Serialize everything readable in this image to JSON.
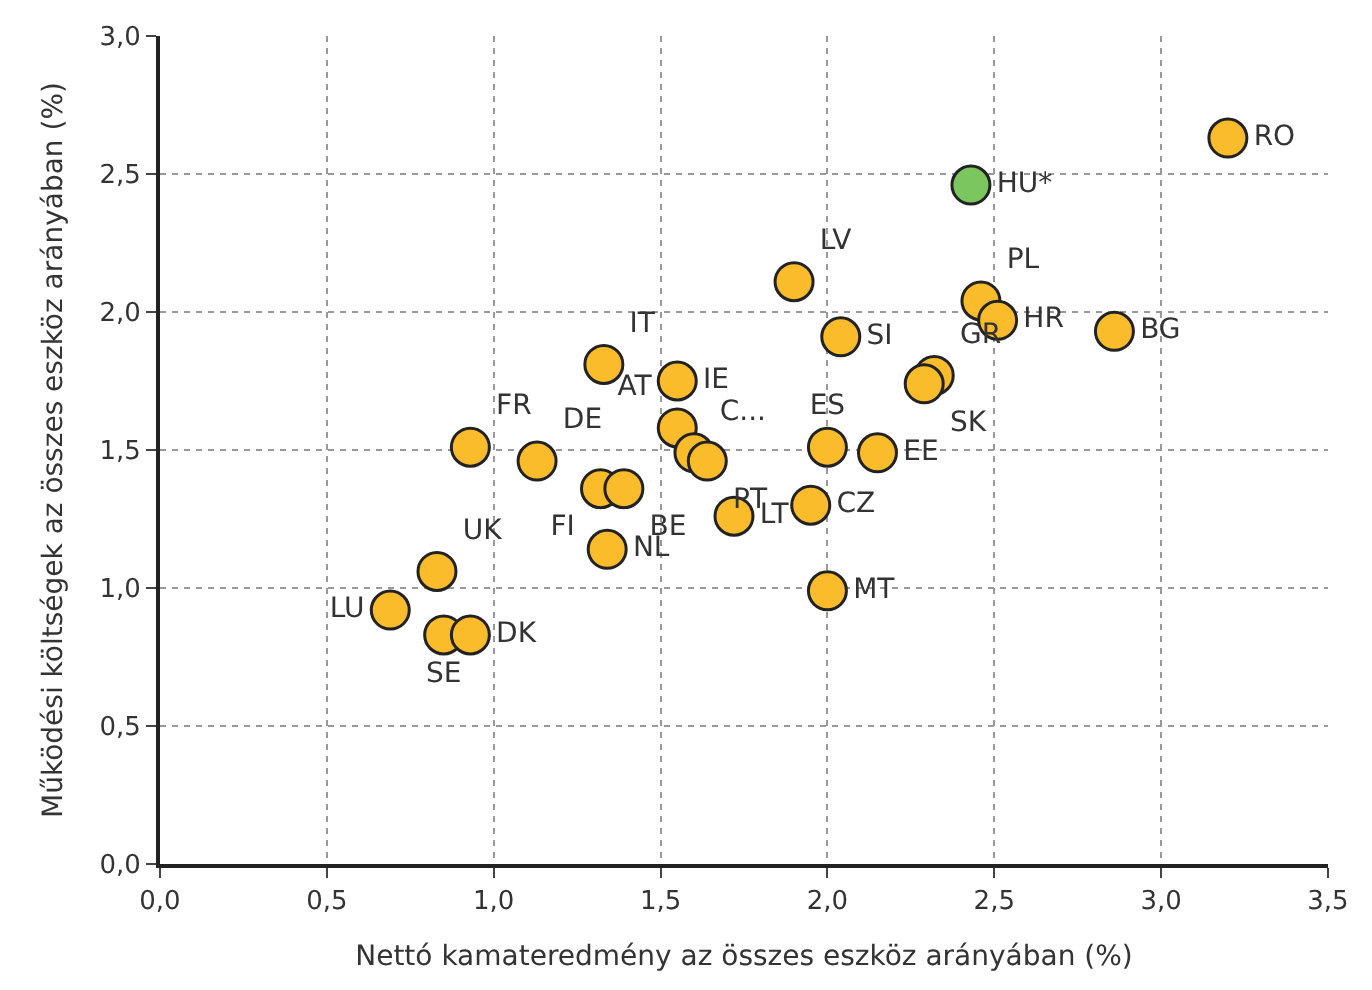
{
  "chart_data": {
    "type": "scatter",
    "xlabel": "Nettó kamateredmény az összes eszköz arányában (%)",
    "ylabel": "Működési költségek az összes eszköz arányában (%)",
    "x": [
      3.2,
      2.43,
      1.9,
      2.46,
      2.51,
      2.86,
      2.04,
      2.32,
      2.29,
      2.0,
      2.15,
      1.95,
      2.0,
      1.33,
      1.55,
      1.55,
      1.6,
      1.64,
      0.93,
      1.13,
      1.32,
      1.39,
      1.72,
      1.34,
      0.83,
      0.69,
      0.85,
      0.93
    ],
    "values": [
      2.63,
      2.46,
      2.11,
      2.04,
      1.97,
      1.93,
      1.91,
      1.77,
      1.74,
      1.51,
      1.49,
      1.3,
      0.99,
      1.81,
      1.75,
      1.58,
      1.49,
      1.46,
      1.51,
      1.46,
      1.36,
      1.36,
      1.26,
      1.14,
      1.06,
      0.92,
      0.83,
      0.83
    ],
    "value_labels": [
      "RO",
      "HU*",
      "LV",
      "PL",
      "HR",
      "BG",
      "SI",
      "GR",
      "SK",
      "ES",
      "EE",
      "CZ",
      "MT",
      "IT",
      "IE",
      "AT",
      "C...",
      "PT",
      "FR",
      "DE",
      "FI",
      "BE",
      "LT",
      "NL",
      "UK",
      "LU",
      "SE",
      "DK"
    ],
    "colors": [
      "#fbbc2b",
      "#7cc660",
      "#fbbc2b",
      "#fbbc2b",
      "#fbbc2b",
      "#fbbc2b",
      "#fbbc2b",
      "#fbbc2b",
      "#fbbc2b",
      "#fbbc2b",
      "#fbbc2b",
      "#fbbc2b",
      "#fbbc2b",
      "#fbbc2b",
      "#fbbc2b",
      "#fbbc2b",
      "#fbbc2b",
      "#fbbc2b",
      "#fbbc2b",
      "#fbbc2b",
      "#fbbc2b",
      "#fbbc2b",
      "#fbbc2b",
      "#fbbc2b",
      "#fbbc2b",
      "#fbbc2b",
      "#fbbc2b",
      "#fbbc2b"
    ],
    "xlim": [
      0,
      3.5
    ],
    "xticks": [
      {
        "value": 0,
        "label": "0,0"
      },
      {
        "value": 0.5,
        "label": "0,5"
      },
      {
        "value": 1,
        "label": "1,0"
      },
      {
        "value": 1.5,
        "label": "1,5"
      },
      {
        "value": 2,
        "label": "2,0"
      },
      {
        "value": 2.5,
        "label": "2,5"
      },
      {
        "value": 3,
        "label": "3,0"
      },
      {
        "value": 3.5,
        "label": "3,5"
      }
    ],
    "ylim": [
      0,
      3
    ],
    "yticks": [
      {
        "value": 0,
        "label": "0,0"
      },
      {
        "value": 0.5,
        "label": "0,5"
      },
      {
        "value": 1,
        "label": "1,0"
      },
      {
        "value": 1.5,
        "label": "1,5"
      },
      {
        "value": 2,
        "label": "2,0"
      },
      {
        "value": 2.5,
        "label": "2,5"
      },
      {
        "value": 3,
        "label": "3,0"
      }
    ],
    "grid": true,
    "marker": "circle"
  }
}
